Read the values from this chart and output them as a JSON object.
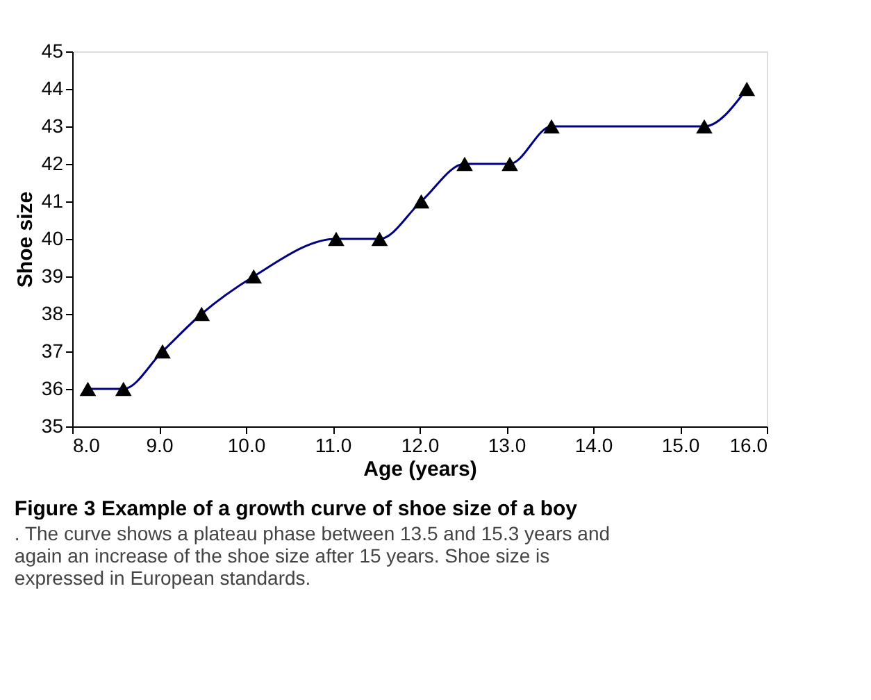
{
  "chart_data": {
    "type": "line",
    "title": "Figure 3 Example of a growth curve of shoe size of a boy",
    "annotations": [
      ". The curve shows a plateau phase between 13.5 and 15.3 years and again an increase of the shoe size after 15 years. Shoe size is expressed in European standards."
    ],
    "xlabel": "Age (years)",
    "ylabel": "Shoe size",
    "x": [
      8.18,
      8.59,
      9.04,
      9.49,
      10.09,
      11.04,
      11.54,
      12.02,
      12.52,
      13.04,
      13.52,
      15.28,
      15.77
    ],
    "series": [
      {
        "color": "#000080",
        "values": [
          36,
          36,
          37,
          38,
          39,
          40,
          40,
          41,
          42,
          42,
          43,
          43,
          44
        ]
      }
    ],
    "xlim": [
      8,
      16
    ],
    "ylim": [
      35,
      45
    ],
    "xticks": [
      {
        "value": 8,
        "label": "8.0"
      },
      {
        "value": 9,
        "label": "9.0"
      },
      {
        "value": 10,
        "label": "10.0"
      },
      {
        "value": 11,
        "label": "11.0"
      },
      {
        "value": 12,
        "label": "12.0"
      },
      {
        "value": 13,
        "label": "13.0"
      },
      {
        "value": 14,
        "label": "14.0"
      },
      {
        "value": 15,
        "label": "15.0"
      },
      {
        "value": 16,
        "label": "16.0"
      }
    ],
    "yticks": [
      35,
      36,
      37,
      38,
      39,
      40,
      41,
      42,
      43,
      44,
      45
    ],
    "marker": "triangle",
    "line_style": "solid",
    "grid": false
  }
}
